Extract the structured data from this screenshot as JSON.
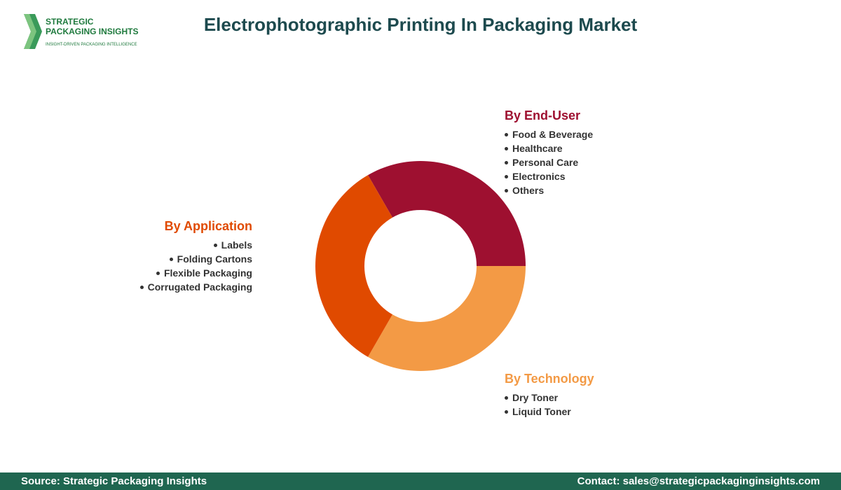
{
  "header": {
    "logo_line1": "STRATEGIC",
    "logo_line2": "PACKAGING INSIGHTS",
    "logo_tagline": "INSIGHT-DRIVEN PACKAGING INTELLIGENCE",
    "title": "Electrophotographic Printing In Packaging Market"
  },
  "segments": [
    {
      "title": "By End-User",
      "items": [
        "Food & Beverage",
        "Healthcare",
        "Personal Care",
        "Electronics",
        "Others"
      ]
    },
    {
      "title": "By Application",
      "items": [
        "Labels",
        "Folding Cartons",
        "Flexible Packaging",
        "Corrugated Packaging"
      ]
    },
    {
      "title": "By Technology",
      "items": [
        "Dry Toner",
        "Liquid Toner"
      ]
    }
  ],
  "footer": {
    "source": "Source: Strategic Packaging Insights",
    "contact": "Contact: sales@strategicpackaginginsights.com"
  }
}
